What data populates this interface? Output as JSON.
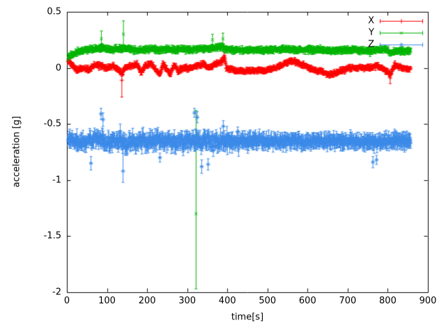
{
  "chart_data": {
    "type": "scatter",
    "title": "",
    "xlabel": "time[s]",
    "ylabel": "acceleration [g]",
    "xlim": [
      0,
      900
    ],
    "ylim": [
      -2,
      0.5
    ],
    "xticks": [
      0,
      100,
      200,
      300,
      400,
      500,
      600,
      700,
      800,
      900
    ],
    "yticks": [
      -2,
      -1.5,
      -1,
      -0.5,
      0,
      0.5
    ],
    "grid": false,
    "legend_position": "top-right",
    "background": "#ffffff",
    "axis_color": "#000000",
    "t_range": [
      3,
      857
    ],
    "sample_step": 1,
    "series": [
      {
        "name": "X",
        "color": "#ff0000",
        "marker": "plus",
        "noise": 0.012,
        "errorbar": 0.018,
        "baseline": [
          [
            3,
            0.07
          ],
          [
            10,
            0.04
          ],
          [
            25,
            -0.02
          ],
          [
            40,
            0.0
          ],
          [
            55,
            -0.02
          ],
          [
            70,
            0.03
          ],
          [
            85,
            0.02
          ],
          [
            100,
            0.0
          ],
          [
            115,
            0.02
          ],
          [
            130,
            -0.02
          ],
          [
            137,
            -0.05
          ],
          [
            145,
            0.0
          ],
          [
            160,
            0.02
          ],
          [
            175,
            0.03
          ],
          [
            185,
            -0.04
          ],
          [
            195,
            0.02
          ],
          [
            210,
            0.04
          ],
          [
            222,
            -0.02
          ],
          [
            232,
            -0.06
          ],
          [
            240,
            0.04
          ],
          [
            250,
            -0.02
          ],
          [
            258,
            -0.05
          ],
          [
            268,
            0.03
          ],
          [
            278,
            -0.03
          ],
          [
            290,
            0.0
          ],
          [
            310,
            0.0
          ],
          [
            325,
            0.02
          ],
          [
            340,
            0.03
          ],
          [
            355,
            0.0
          ],
          [
            370,
            0.03
          ],
          [
            385,
            0.05
          ],
          [
            392,
            0.09
          ],
          [
            398,
            0.0
          ],
          [
            415,
            -0.02
          ],
          [
            440,
            -0.03
          ],
          [
            470,
            -0.02
          ],
          [
            495,
            -0.02
          ],
          [
            515,
            0.0
          ],
          [
            535,
            0.02
          ],
          [
            555,
            0.06
          ],
          [
            575,
            0.05
          ],
          [
            595,
            0.02
          ],
          [
            615,
            -0.02
          ],
          [
            635,
            -0.03
          ],
          [
            652,
            -0.06
          ],
          [
            668,
            -0.05
          ],
          [
            685,
            -0.02
          ],
          [
            705,
            0.0
          ],
          [
            730,
            0.0
          ],
          [
            755,
            0.0
          ],
          [
            775,
            0.02
          ],
          [
            795,
            -0.02
          ],
          [
            807,
            -0.06
          ],
          [
            818,
            0.03
          ],
          [
            835,
            0.0
          ],
          [
            857,
            -0.01
          ]
        ],
        "outliers": [
          {
            "t": 137,
            "v": -0.11,
            "elo": 0.15,
            "ehi": 0.05
          },
          {
            "t": 392,
            "v": 0.1,
            "elo": 0.04,
            "ehi": 0.04
          },
          {
            "t": 806,
            "v": -0.09,
            "elo": 0.05,
            "ehi": 0.04
          }
        ]
      },
      {
        "name": "Y",
        "color": "#00b400",
        "marker": "cross",
        "noise": 0.01,
        "errorbar": 0.022,
        "baseline": [
          [
            3,
            0.1
          ],
          [
            15,
            0.12
          ],
          [
            30,
            0.15
          ],
          [
            50,
            0.16
          ],
          [
            70,
            0.17
          ],
          [
            90,
            0.18
          ],
          [
            110,
            0.16
          ],
          [
            130,
            0.17
          ],
          [
            145,
            0.18
          ],
          [
            165,
            0.16
          ],
          [
            190,
            0.16
          ],
          [
            210,
            0.17
          ],
          [
            230,
            0.16
          ],
          [
            250,
            0.17
          ],
          [
            270,
            0.16
          ],
          [
            290,
            0.17
          ],
          [
            310,
            0.16
          ],
          [
            330,
            0.17
          ],
          [
            350,
            0.17
          ],
          [
            370,
            0.18
          ],
          [
            385,
            0.19
          ],
          [
            395,
            0.17
          ],
          [
            420,
            0.16
          ],
          [
            450,
            0.16
          ],
          [
            480,
            0.16
          ],
          [
            510,
            0.16
          ],
          [
            540,
            0.17
          ],
          [
            570,
            0.16
          ],
          [
            600,
            0.16
          ],
          [
            630,
            0.16
          ],
          [
            660,
            0.15
          ],
          [
            690,
            0.16
          ],
          [
            720,
            0.16
          ],
          [
            750,
            0.15
          ],
          [
            775,
            0.16
          ],
          [
            795,
            0.17
          ],
          [
            808,
            0.13
          ],
          [
            820,
            0.15
          ],
          [
            840,
            0.15
          ],
          [
            857,
            0.15
          ]
        ],
        "outliers": [
          {
            "t": 322,
            "v": -1.3,
            "elo": 0.67,
            "ehi": 0.92
          },
          {
            "t": 86,
            "v": 0.26,
            "elo": 0.09,
            "ehi": 0.07
          },
          {
            "t": 141,
            "v": 0.3,
            "elo": 0.11,
            "ehi": 0.12
          },
          {
            "t": 363,
            "v": 0.25,
            "elo": 0.05,
            "ehi": 0.05
          },
          {
            "t": 389,
            "v": 0.26,
            "elo": 0.07,
            "ehi": 0.05
          }
        ]
      },
      {
        "name": "Z",
        "color": "#3c8ae8",
        "marker": "star",
        "noise": 0.035,
        "errorbar": 0.05,
        "noise_keys": [
          [
            3,
            0.02
          ],
          [
            40,
            0.035
          ],
          [
            90,
            0.045
          ],
          [
            150,
            0.05
          ],
          [
            220,
            0.045
          ],
          [
            300,
            0.045
          ],
          [
            360,
            0.05
          ],
          [
            420,
            0.04
          ],
          [
            480,
            0.04
          ],
          [
            550,
            0.035
          ],
          [
            620,
            0.03
          ],
          [
            700,
            0.025
          ],
          [
            780,
            0.03
          ],
          [
            857,
            0.022
          ]
        ],
        "baseline": [
          [
            3,
            -0.63
          ],
          [
            20,
            -0.65
          ],
          [
            40,
            -0.66
          ],
          [
            60,
            -0.65
          ],
          [
            80,
            -0.64
          ],
          [
            95,
            -0.66
          ],
          [
            110,
            -0.65
          ],
          [
            130,
            -0.66
          ],
          [
            145,
            -0.67
          ],
          [
            165,
            -0.65
          ],
          [
            190,
            -0.66
          ],
          [
            215,
            -0.64
          ],
          [
            240,
            -0.65
          ],
          [
            265,
            -0.66
          ],
          [
            290,
            -0.65
          ],
          [
            310,
            -0.64
          ],
          [
            330,
            -0.66
          ],
          [
            355,
            -0.66
          ],
          [
            380,
            -0.65
          ],
          [
            410,
            -0.66
          ],
          [
            440,
            -0.66
          ],
          [
            470,
            -0.65
          ],
          [
            500,
            -0.66
          ],
          [
            530,
            -0.66
          ],
          [
            560,
            -0.65
          ],
          [
            590,
            -0.66
          ],
          [
            620,
            -0.65
          ],
          [
            650,
            -0.65
          ],
          [
            680,
            -0.65
          ],
          [
            710,
            -0.65
          ],
          [
            740,
            -0.66
          ],
          [
            770,
            -0.66
          ],
          [
            800,
            -0.65
          ],
          [
            830,
            -0.65
          ],
          [
            857,
            -0.65
          ]
        ],
        "outliers": [
          {
            "t": 60,
            "v": -0.85,
            "elo": 0.06,
            "ehi": 0.06
          },
          {
            "t": 85,
            "v": -0.41,
            "elo": 0.05,
            "ehi": 0.05
          },
          {
            "t": 90,
            "v": -0.46,
            "elo": 0.06,
            "ehi": 0.06
          },
          {
            "t": 140,
            "v": -0.92,
            "elo": 0.1,
            "ehi": 0.22
          },
          {
            "t": 232,
            "v": -0.8,
            "elo": 0.04,
            "ehi": 0.04
          },
          {
            "t": 318,
            "v": -0.4,
            "elo": 0.04,
            "ehi": 0.04
          },
          {
            "t": 325,
            "v": -0.44,
            "elo": 0.05,
            "ehi": 0.05
          },
          {
            "t": 336,
            "v": -0.88,
            "elo": 0.06,
            "ehi": 0.06
          },
          {
            "t": 352,
            "v": -0.86,
            "elo": 0.05,
            "ehi": 0.05
          },
          {
            "t": 390,
            "v": -0.52,
            "elo": 0.2,
            "ehi": 0.05
          },
          {
            "t": 763,
            "v": -0.84,
            "elo": 0.05,
            "ehi": 0.05
          },
          {
            "t": 772,
            "v": -0.82,
            "elo": 0.04,
            "ehi": 0.04
          }
        ]
      }
    ]
  }
}
